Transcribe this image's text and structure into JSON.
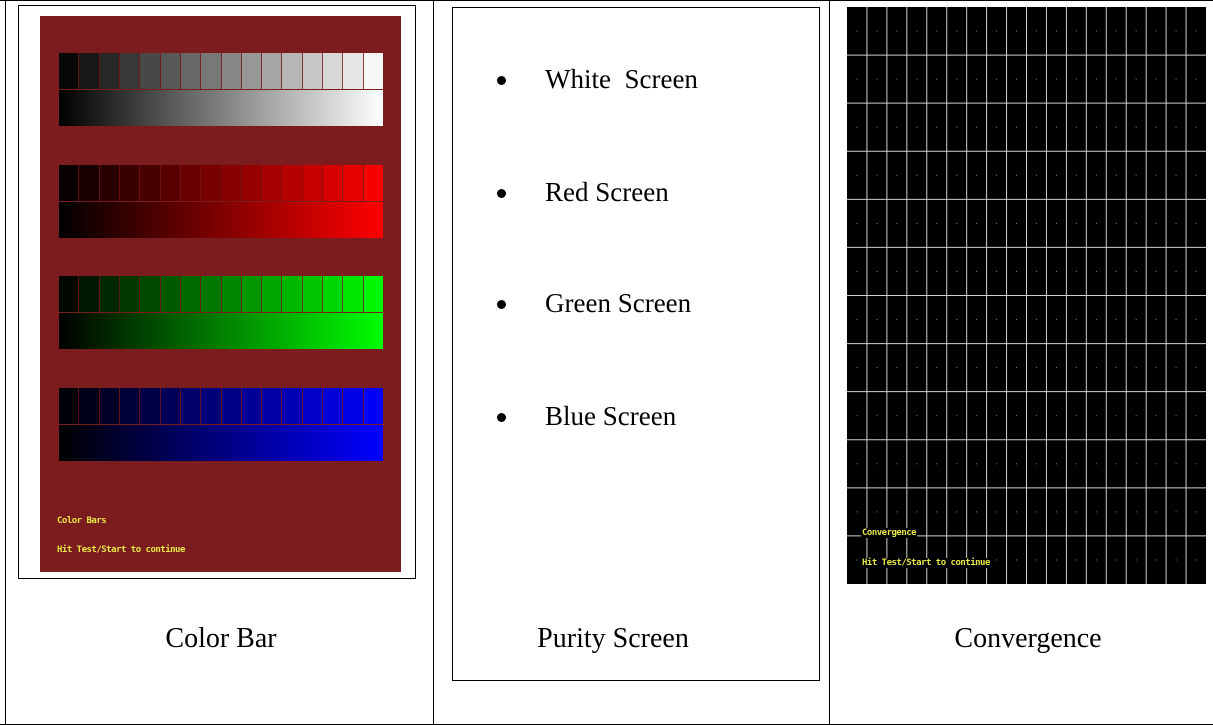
{
  "color_bar": {
    "caption": "Color Bar",
    "osd_title": "Color Bars",
    "osd_instruction": "Hit Test/Start to continue",
    "bars": [
      {
        "name": "gray",
        "steps": 16,
        "color": "#ffffff"
      },
      {
        "name": "red",
        "steps": 16,
        "color": "#ff0000"
      },
      {
        "name": "green",
        "steps": 16,
        "color": "#00ff00"
      },
      {
        "name": "blue",
        "steps": 16,
        "color": "#0000ff"
      }
    ],
    "background_color": "#7b1c1e"
  },
  "purity": {
    "caption": "Purity Screen",
    "items": [
      "White  Screen",
      "Red Screen",
      "Green Screen",
      "Blue Screen"
    ]
  },
  "convergence": {
    "caption": "Convergence",
    "osd_title": "Convergence",
    "osd_instruction": "Hit Test/Start to continue",
    "columns": 18,
    "rows": 12,
    "grid_color": "#cfcfcf"
  }
}
